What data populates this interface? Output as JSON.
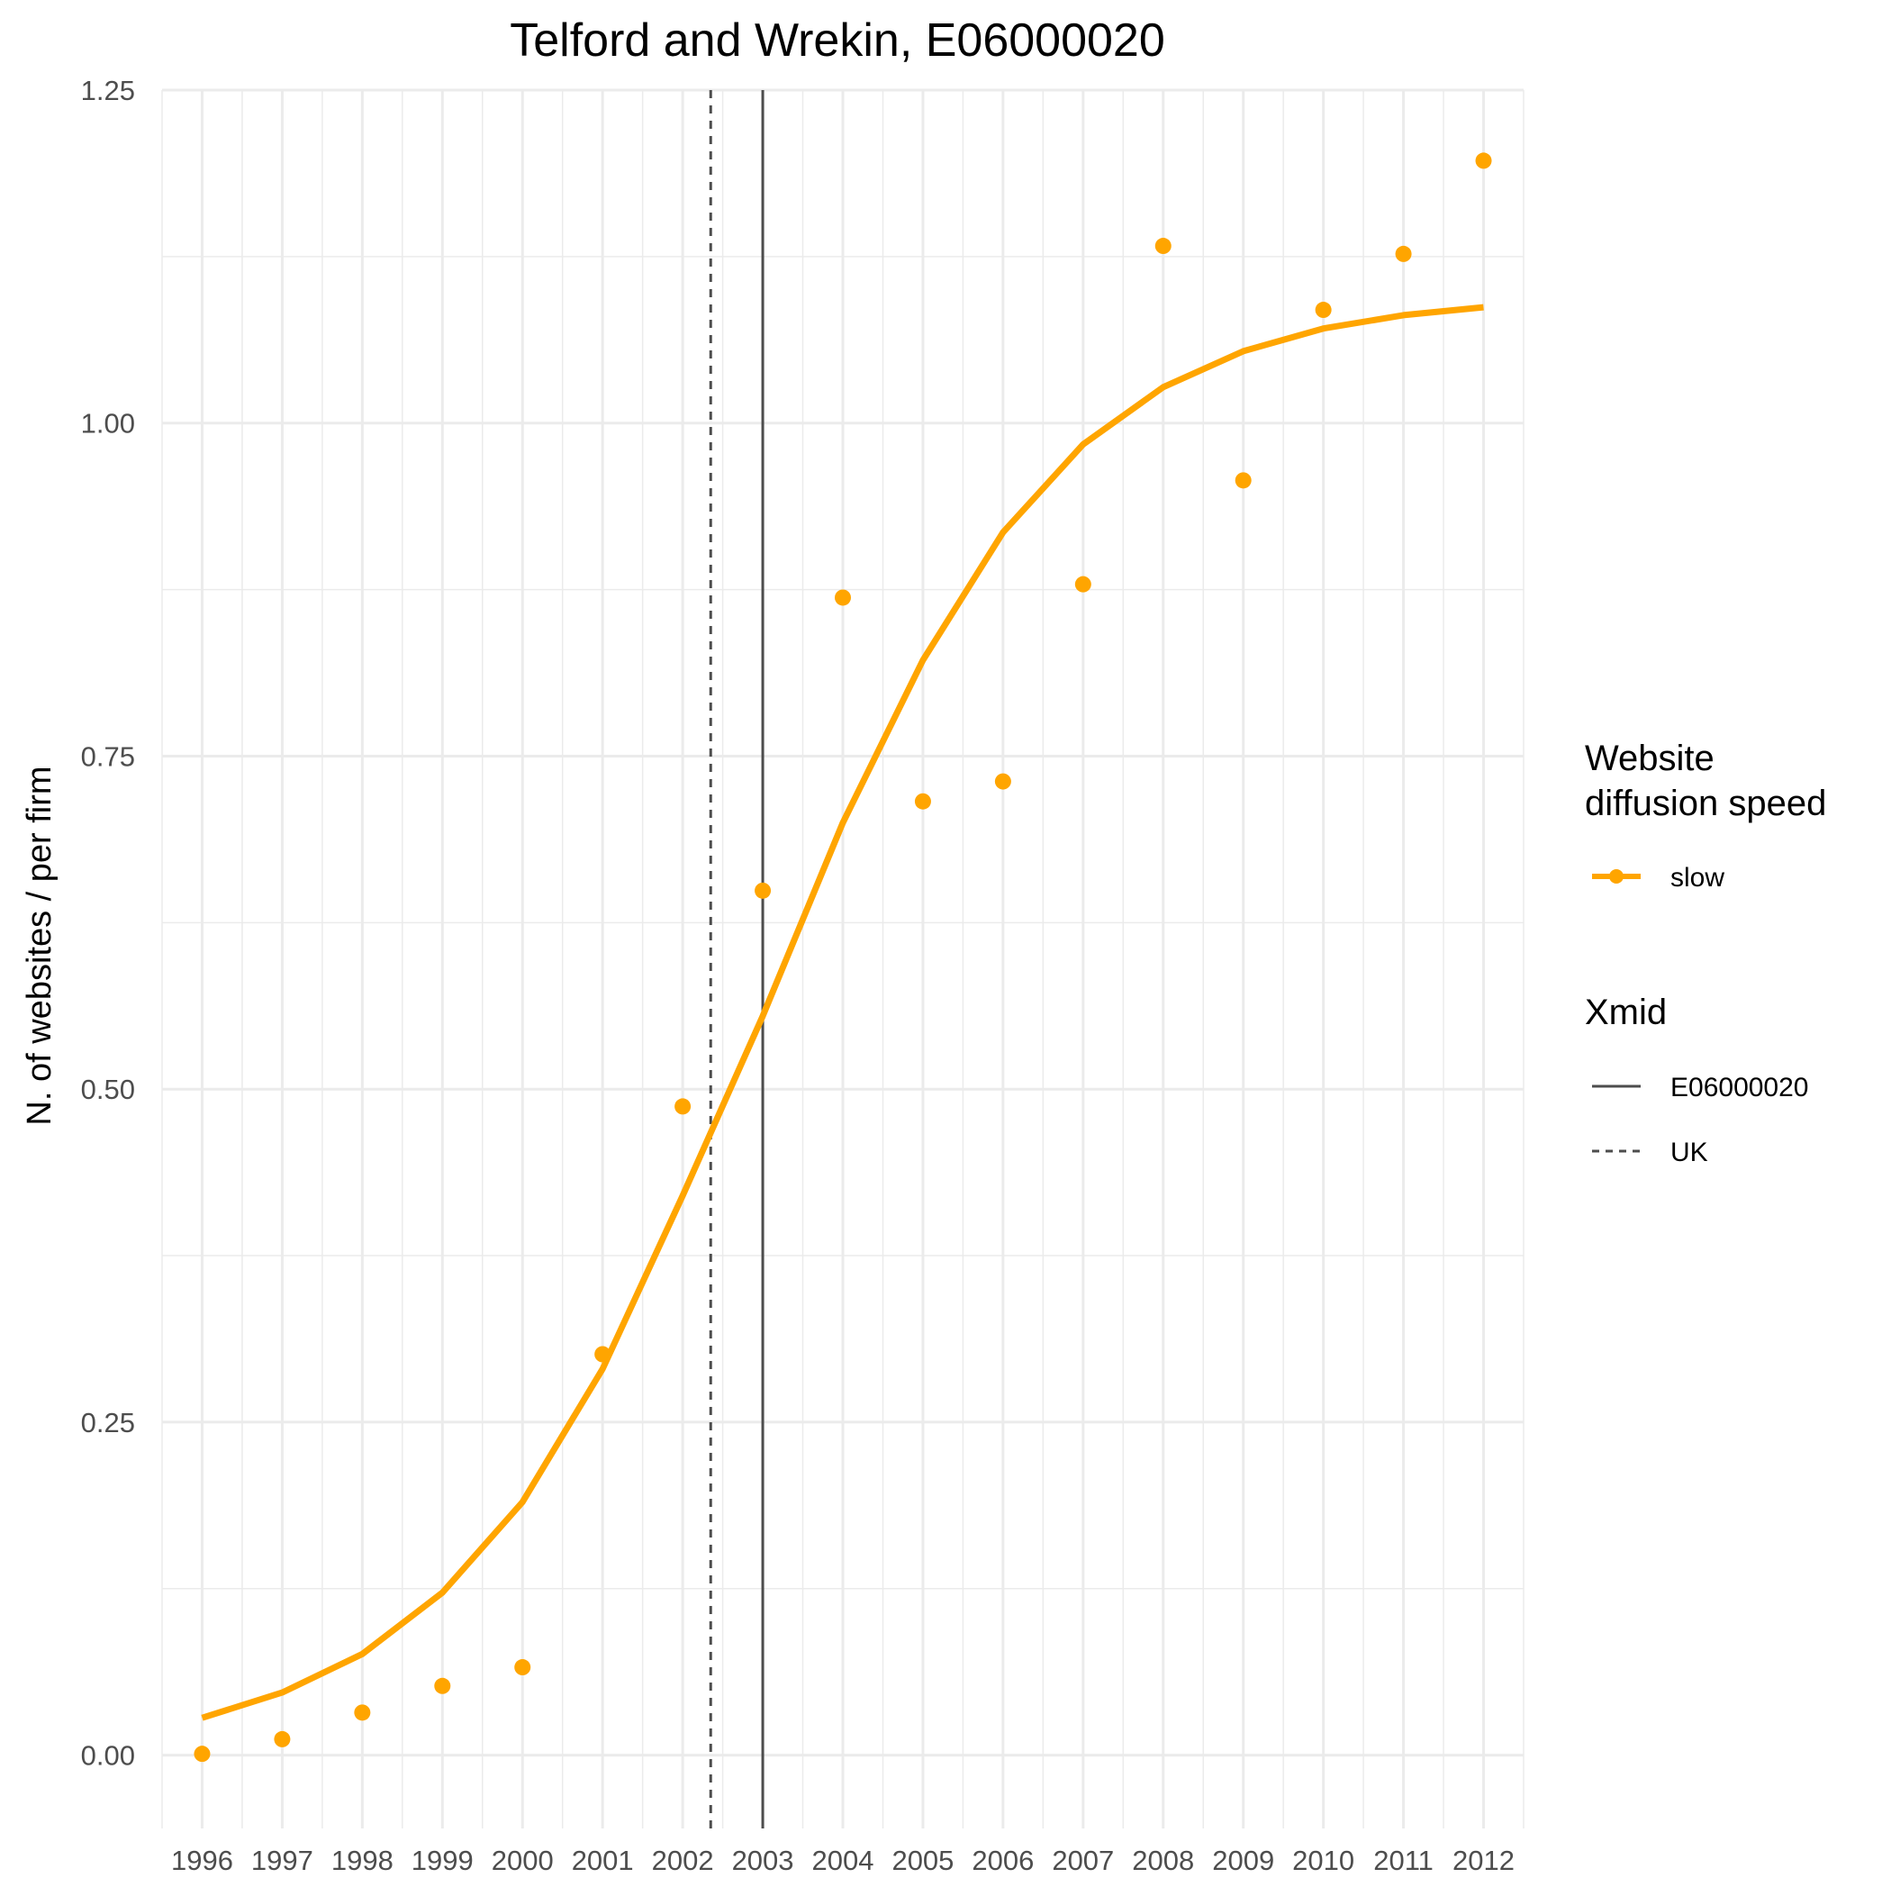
{
  "chart_data": {
    "type": "line",
    "title": "Telford and Wrekin, E06000020",
    "xlabel": "",
    "ylabel": "N. of websites / per firm",
    "xlim": [
      1995.5,
      2012.5
    ],
    "ylim": [
      -0.055,
      1.25
    ],
    "x_ticks": [
      "1996",
      "1997",
      "1998",
      "1999",
      "2000",
      "2001",
      "2002",
      "2003",
      "2004",
      "2005",
      "2006",
      "2007",
      "2008",
      "2009",
      "2010",
      "2011",
      "2012"
    ],
    "y_ticks": [
      {
        "value": 0,
        "label": "0.00"
      },
      {
        "value": 0.25,
        "label": "0.25"
      },
      {
        "value": 0.5,
        "label": "0.50"
      },
      {
        "value": 0.75,
        "label": "0.75"
      },
      {
        "value": 1.0,
        "label": "1.00"
      },
      {
        "value": 1.25,
        "label": "1.25"
      }
    ],
    "grid": true,
    "series": [
      {
        "name": "slow",
        "color": "#FFA500",
        "x": [
          1996,
          1997,
          1998,
          1999,
          2000,
          2001,
          2002,
          2003,
          2004,
          2005,
          2006,
          2007,
          2008,
          2009,
          2010,
          2011,
          2012
        ],
        "fit": [
          0.028,
          0.047,
          0.076,
          0.122,
          0.19,
          0.29,
          0.42,
          0.555,
          0.7,
          0.822,
          0.918,
          0.984,
          1.027,
          1.054,
          1.071,
          1.081,
          1.087
        ],
        "points": [
          0.001,
          0.012,
          0.032,
          0.052,
          0.066,
          0.301,
          0.487,
          0.649,
          0.869,
          0.716,
          0.731,
          0.879,
          1.133,
          0.957,
          1.085,
          1.127,
          1.197
        ]
      }
    ],
    "vlines": [
      {
        "name": "E06000020",
        "x": 2003.0,
        "style": "solid",
        "color": "#4d4d4d"
      },
      {
        "name": "UK",
        "x": 2002.35,
        "style": "dashed",
        "color": "#4d4d4d"
      }
    ],
    "legend": {
      "position": "right",
      "speed_title_line1": "Website",
      "speed_title_line2": "diffusion speed",
      "speed_item": "slow",
      "xmid_title": "Xmid",
      "xmid_items": [
        "E06000020",
        "UK"
      ]
    }
  }
}
